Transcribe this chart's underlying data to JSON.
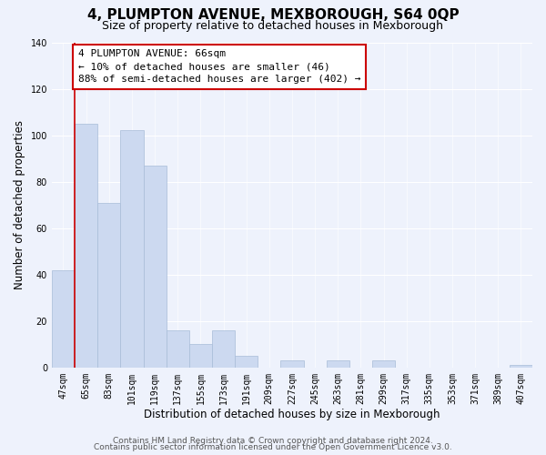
{
  "title": "4, PLUMPTON AVENUE, MEXBOROUGH, S64 0QP",
  "subtitle": "Size of property relative to detached houses in Mexborough",
  "xlabel": "Distribution of detached houses by size in Mexborough",
  "ylabel": "Number of detached properties",
  "bar_color": "#ccd9f0",
  "bar_edge_color": "#a8bcd8",
  "bin_labels": [
    "47sqm",
    "65sqm",
    "83sqm",
    "101sqm",
    "119sqm",
    "137sqm",
    "155sqm",
    "173sqm",
    "191sqm",
    "209sqm",
    "227sqm",
    "245sqm",
    "263sqm",
    "281sqm",
    "299sqm",
    "317sqm",
    "335sqm",
    "353sqm",
    "371sqm",
    "389sqm",
    "407sqm"
  ],
  "bar_heights": [
    42,
    105,
    71,
    102,
    87,
    16,
    10,
    16,
    5,
    0,
    3,
    0,
    3,
    0,
    3,
    0,
    0,
    0,
    0,
    0,
    1
  ],
  "property_line_bin_index": 1,
  "annotation_title": "4 PLUMPTON AVENUE: 66sqm",
  "annotation_line1": "← 10% of detached houses are smaller (46)",
  "annotation_line2": "88% of semi-detached houses are larger (402) →",
  "annotation_box_color": "#ffffff",
  "annotation_box_edge_color": "#cc0000",
  "property_line_color": "#cc0000",
  "ylim": [
    0,
    140
  ],
  "yticks": [
    0,
    20,
    40,
    60,
    80,
    100,
    120,
    140
  ],
  "footer1": "Contains HM Land Registry data © Crown copyright and database right 2024.",
  "footer2": "Contains public sector information licensed under the Open Government Licence v3.0.",
  "background_color": "#eef2fc",
  "plot_bg_color": "#eef2fc",
  "grid_color": "#ffffff",
  "title_fontsize": 11,
  "subtitle_fontsize": 9,
  "axis_label_fontsize": 8.5,
  "tick_fontsize": 7,
  "annotation_fontsize": 8,
  "footer_fontsize": 6.5
}
